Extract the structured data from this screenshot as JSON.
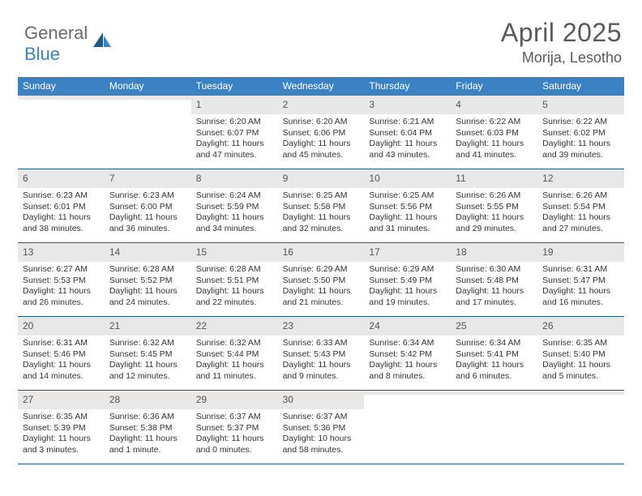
{
  "brand": {
    "word1": "General",
    "word2": "Blue"
  },
  "title": "April 2025",
  "location": "Morija, Lesotho",
  "colors": {
    "header_bg": "#3b82c4",
    "divider": "#1f5a8a",
    "daynum_bg": "#e8e8e8",
    "text": "#333333",
    "title_text": "#5a5a5a"
  },
  "weekdays": [
    "Sunday",
    "Monday",
    "Tuesday",
    "Wednesday",
    "Thursday",
    "Friday",
    "Saturday"
  ],
  "weeks": [
    [
      {
        "day": "",
        "sunrise": "",
        "sunset": "",
        "daylight": ""
      },
      {
        "day": "",
        "sunrise": "",
        "sunset": "",
        "daylight": ""
      },
      {
        "day": "1",
        "sunrise": "Sunrise: 6:20 AM",
        "sunset": "Sunset: 6:07 PM",
        "daylight": "Daylight: 11 hours and 47 minutes."
      },
      {
        "day": "2",
        "sunrise": "Sunrise: 6:20 AM",
        "sunset": "Sunset: 6:06 PM",
        "daylight": "Daylight: 11 hours and 45 minutes."
      },
      {
        "day": "3",
        "sunrise": "Sunrise: 6:21 AM",
        "sunset": "Sunset: 6:04 PM",
        "daylight": "Daylight: 11 hours and 43 minutes."
      },
      {
        "day": "4",
        "sunrise": "Sunrise: 6:22 AM",
        "sunset": "Sunset: 6:03 PM",
        "daylight": "Daylight: 11 hours and 41 minutes."
      },
      {
        "day": "5",
        "sunrise": "Sunrise: 6:22 AM",
        "sunset": "Sunset: 6:02 PM",
        "daylight": "Daylight: 11 hours and 39 minutes."
      }
    ],
    [
      {
        "day": "6",
        "sunrise": "Sunrise: 6:23 AM",
        "sunset": "Sunset: 6:01 PM",
        "daylight": "Daylight: 11 hours and 38 minutes."
      },
      {
        "day": "7",
        "sunrise": "Sunrise: 6:23 AM",
        "sunset": "Sunset: 6:00 PM",
        "daylight": "Daylight: 11 hours and 36 minutes."
      },
      {
        "day": "8",
        "sunrise": "Sunrise: 6:24 AM",
        "sunset": "Sunset: 5:59 PM",
        "daylight": "Daylight: 11 hours and 34 minutes."
      },
      {
        "day": "9",
        "sunrise": "Sunrise: 6:25 AM",
        "sunset": "Sunset: 5:58 PM",
        "daylight": "Daylight: 11 hours and 32 minutes."
      },
      {
        "day": "10",
        "sunrise": "Sunrise: 6:25 AM",
        "sunset": "Sunset: 5:56 PM",
        "daylight": "Daylight: 11 hours and 31 minutes."
      },
      {
        "day": "11",
        "sunrise": "Sunrise: 6:26 AM",
        "sunset": "Sunset: 5:55 PM",
        "daylight": "Daylight: 11 hours and 29 minutes."
      },
      {
        "day": "12",
        "sunrise": "Sunrise: 6:26 AM",
        "sunset": "Sunset: 5:54 PM",
        "daylight": "Daylight: 11 hours and 27 minutes."
      }
    ],
    [
      {
        "day": "13",
        "sunrise": "Sunrise: 6:27 AM",
        "sunset": "Sunset: 5:53 PM",
        "daylight": "Daylight: 11 hours and 26 minutes."
      },
      {
        "day": "14",
        "sunrise": "Sunrise: 6:28 AM",
        "sunset": "Sunset: 5:52 PM",
        "daylight": "Daylight: 11 hours and 24 minutes."
      },
      {
        "day": "15",
        "sunrise": "Sunrise: 6:28 AM",
        "sunset": "Sunset: 5:51 PM",
        "daylight": "Daylight: 11 hours and 22 minutes."
      },
      {
        "day": "16",
        "sunrise": "Sunrise: 6:29 AM",
        "sunset": "Sunset: 5:50 PM",
        "daylight": "Daylight: 11 hours and 21 minutes."
      },
      {
        "day": "17",
        "sunrise": "Sunrise: 6:29 AM",
        "sunset": "Sunset: 5:49 PM",
        "daylight": "Daylight: 11 hours and 19 minutes."
      },
      {
        "day": "18",
        "sunrise": "Sunrise: 6:30 AM",
        "sunset": "Sunset: 5:48 PM",
        "daylight": "Daylight: 11 hours and 17 minutes."
      },
      {
        "day": "19",
        "sunrise": "Sunrise: 6:31 AM",
        "sunset": "Sunset: 5:47 PM",
        "daylight": "Daylight: 11 hours and 16 minutes."
      }
    ],
    [
      {
        "day": "20",
        "sunrise": "Sunrise: 6:31 AM",
        "sunset": "Sunset: 5:46 PM",
        "daylight": "Daylight: 11 hours and 14 minutes."
      },
      {
        "day": "21",
        "sunrise": "Sunrise: 6:32 AM",
        "sunset": "Sunset: 5:45 PM",
        "daylight": "Daylight: 11 hours and 12 minutes."
      },
      {
        "day": "22",
        "sunrise": "Sunrise: 6:32 AM",
        "sunset": "Sunset: 5:44 PM",
        "daylight": "Daylight: 11 hours and 11 minutes."
      },
      {
        "day": "23",
        "sunrise": "Sunrise: 6:33 AM",
        "sunset": "Sunset: 5:43 PM",
        "daylight": "Daylight: 11 hours and 9 minutes."
      },
      {
        "day": "24",
        "sunrise": "Sunrise: 6:34 AM",
        "sunset": "Sunset: 5:42 PM",
        "daylight": "Daylight: 11 hours and 8 minutes."
      },
      {
        "day": "25",
        "sunrise": "Sunrise: 6:34 AM",
        "sunset": "Sunset: 5:41 PM",
        "daylight": "Daylight: 11 hours and 6 minutes."
      },
      {
        "day": "26",
        "sunrise": "Sunrise: 6:35 AM",
        "sunset": "Sunset: 5:40 PM",
        "daylight": "Daylight: 11 hours and 5 minutes."
      }
    ],
    [
      {
        "day": "27",
        "sunrise": "Sunrise: 6:35 AM",
        "sunset": "Sunset: 5:39 PM",
        "daylight": "Daylight: 11 hours and 3 minutes."
      },
      {
        "day": "28",
        "sunrise": "Sunrise: 6:36 AM",
        "sunset": "Sunset: 5:38 PM",
        "daylight": "Daylight: 11 hours and 1 minute."
      },
      {
        "day": "29",
        "sunrise": "Sunrise: 6:37 AM",
        "sunset": "Sunset: 5:37 PM",
        "daylight": "Daylight: 11 hours and 0 minutes."
      },
      {
        "day": "30",
        "sunrise": "Sunrise: 6:37 AM",
        "sunset": "Sunset: 5:36 PM",
        "daylight": "Daylight: 10 hours and 58 minutes."
      },
      {
        "day": "",
        "sunrise": "",
        "sunset": "",
        "daylight": ""
      },
      {
        "day": "",
        "sunrise": "",
        "sunset": "",
        "daylight": ""
      },
      {
        "day": "",
        "sunrise": "",
        "sunset": "",
        "daylight": ""
      }
    ]
  ]
}
